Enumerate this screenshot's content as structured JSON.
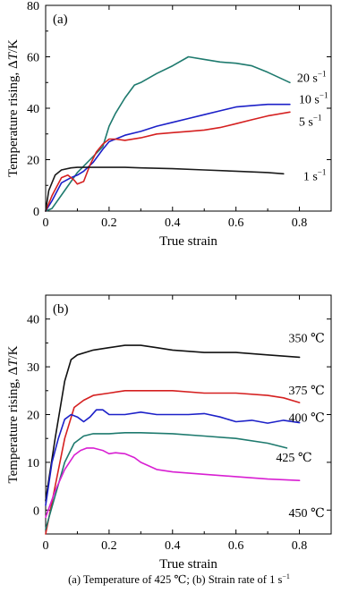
{
  "caption": "(a) Temperature of 425 ℃; (b) Strain rate of 1 s",
  "caption_sup": "−1",
  "chart_data": [
    {
      "panel": "(a)",
      "type": "line",
      "xlabel": "True strain",
      "ylabel_prefix": "Temperature rising, Δ",
      "ylabel_var": "T",
      "ylabel_unit": "/K",
      "xlim": [
        0,
        0.9
      ],
      "ylim": [
        0,
        80
      ],
      "xticks": [
        0,
        0.2,
        0.4,
        0.6,
        0.8
      ],
      "xtick_labels": [
        "0",
        "0.2",
        "0.4",
        "0.6",
        "0.8"
      ],
      "yticks": [
        0,
        20,
        40,
        60,
        80
      ],
      "ytick_labels": [
        "0",
        "20",
        "40",
        "60",
        "80"
      ],
      "grid": false,
      "series": [
        {
          "name": "20 s",
          "name_sup": "−1",
          "color": "#1e7a6e",
          "x": [
            0,
            0.02,
            0.06,
            0.1,
            0.14,
            0.18,
            0.2,
            0.22,
            0.25,
            0.28,
            0.3,
            0.35,
            0.4,
            0.45,
            0.5,
            0.55,
            0.6,
            0.65,
            0.7,
            0.77
          ],
          "y": [
            0,
            1,
            8,
            15,
            20,
            25,
            33,
            38,
            44,
            49,
            50,
            53.5,
            56.5,
            60,
            59,
            58,
            57.5,
            56.5,
            54,
            50
          ]
        },
        {
          "name": "10 s",
          "name_sup": "−1",
          "color": "#1c20c8",
          "x": [
            0,
            0.02,
            0.05,
            0.08,
            0.1,
            0.12,
            0.15,
            0.18,
            0.2,
            0.25,
            0.3,
            0.35,
            0.4,
            0.45,
            0.5,
            0.55,
            0.6,
            0.65,
            0.7,
            0.77
          ],
          "y": [
            0,
            4,
            11,
            13,
            14,
            15.5,
            19,
            24,
            27,
            29.5,
            31,
            33,
            34.5,
            36,
            37.5,
            39,
            40.5,
            41,
            41.5,
            41.5
          ]
        },
        {
          "name": "5 s",
          "name_sup": "−1",
          "color": "#d52020",
          "x": [
            0,
            0.02,
            0.05,
            0.07,
            0.09,
            0.1,
            0.12,
            0.14,
            0.16,
            0.18,
            0.2,
            0.22,
            0.25,
            0.3,
            0.35,
            0.4,
            0.45,
            0.5,
            0.55,
            0.6,
            0.65,
            0.7,
            0.77
          ],
          "y": [
            0,
            6,
            13,
            14,
            12,
            10.5,
            11.5,
            18,
            23,
            26,
            28,
            28,
            27.5,
            28.5,
            30,
            30.5,
            31,
            31.5,
            32.5,
            34,
            35.5,
            37,
            38.5
          ]
        },
        {
          "name": "1 s",
          "name_sup": "−1",
          "color": "#1a1a1a",
          "x": [
            0,
            0.01,
            0.03,
            0.05,
            0.08,
            0.1,
            0.15,
            0.2,
            0.25,
            0.3,
            0.4,
            0.5,
            0.6,
            0.7,
            0.75
          ],
          "y": [
            0,
            8,
            14,
            16,
            16.8,
            17,
            17,
            17,
            17,
            16.8,
            16.5,
            16,
            15.5,
            15,
            14.5
          ]
        }
      ]
    },
    {
      "panel": "(b)",
      "type": "line",
      "xlabel": "True strain",
      "ylabel_prefix": "Temperature rising, Δ",
      "ylabel_var": "T",
      "ylabel_unit": "/K",
      "xlim": [
        0,
        0.9
      ],
      "ylim": [
        -5,
        45
      ],
      "xticks": [
        0,
        0.2,
        0.4,
        0.6,
        0.8
      ],
      "xtick_labels": [
        "0",
        "0.2",
        "0.4",
        "0.6",
        "0.8"
      ],
      "yticks": [
        0,
        10,
        20,
        30,
        40
      ],
      "ytick_labels": [
        "0",
        "10",
        "20",
        "30",
        "40"
      ],
      "grid": false,
      "series": [
        {
          "name": "350 ℃",
          "color": "#111111",
          "x": [
            0,
            0.03,
            0.06,
            0.08,
            0.1,
            0.15,
            0.2,
            0.25,
            0.3,
            0.35,
            0.4,
            0.5,
            0.6,
            0.7,
            0.8
          ],
          "y": [
            2,
            15,
            27,
            31.5,
            32.5,
            33.5,
            34,
            34.5,
            34.5,
            34,
            33.5,
            33,
            33,
            32.5,
            32
          ]
        },
        {
          "name": "375 ℃",
          "color": "#d52020",
          "x": [
            0,
            0.03,
            0.06,
            0.09,
            0.12,
            0.15,
            0.2,
            0.25,
            0.3,
            0.4,
            0.5,
            0.6,
            0.7,
            0.75,
            0.8
          ],
          "y": [
            -5,
            5,
            15,
            21.5,
            23,
            24,
            24.5,
            25,
            25,
            25,
            24.5,
            24.5,
            24,
            23.5,
            22.5
          ]
        },
        {
          "name": "400 ℃",
          "color": "#1c20c8",
          "x": [
            0,
            0.02,
            0.04,
            0.06,
            0.08,
            0.1,
            0.12,
            0.14,
            0.16,
            0.18,
            0.2,
            0.25,
            0.3,
            0.35,
            0.4,
            0.45,
            0.5,
            0.55,
            0.6,
            0.65,
            0.7,
            0.75,
            0.8
          ],
          "y": [
            1,
            10,
            15,
            19,
            20,
            19.5,
            18.5,
            19.5,
            21,
            21,
            20,
            20,
            20.5,
            20,
            20,
            20,
            20.2,
            19.5,
            18.5,
            18.8,
            18.2,
            18.8,
            18.3
          ]
        },
        {
          "name": "425 ℃",
          "color": "#1e7a6e",
          "x": [
            0,
            0.03,
            0.06,
            0.09,
            0.12,
            0.15,
            0.2,
            0.25,
            0.3,
            0.4,
            0.5,
            0.6,
            0.7,
            0.76
          ],
          "y": [
            -4,
            3,
            10,
            14,
            15.5,
            16,
            16,
            16.2,
            16.2,
            16,
            15.5,
            15,
            14,
            13
          ]
        },
        {
          "name": "450 ℃",
          "color": "#d81fd2",
          "x": [
            0,
            0.03,
            0.06,
            0.09,
            0.11,
            0.13,
            0.15,
            0.18,
            0.2,
            0.22,
            0.25,
            0.28,
            0.3,
            0.35,
            0.4,
            0.5,
            0.6,
            0.7,
            0.8
          ],
          "y": [
            -1.5,
            4,
            8.5,
            11.5,
            12.5,
            13,
            13,
            12.5,
            11.8,
            12,
            11.8,
            11,
            10,
            8.5,
            8,
            7.5,
            7,
            6.5,
            6.2
          ]
        }
      ]
    }
  ]
}
